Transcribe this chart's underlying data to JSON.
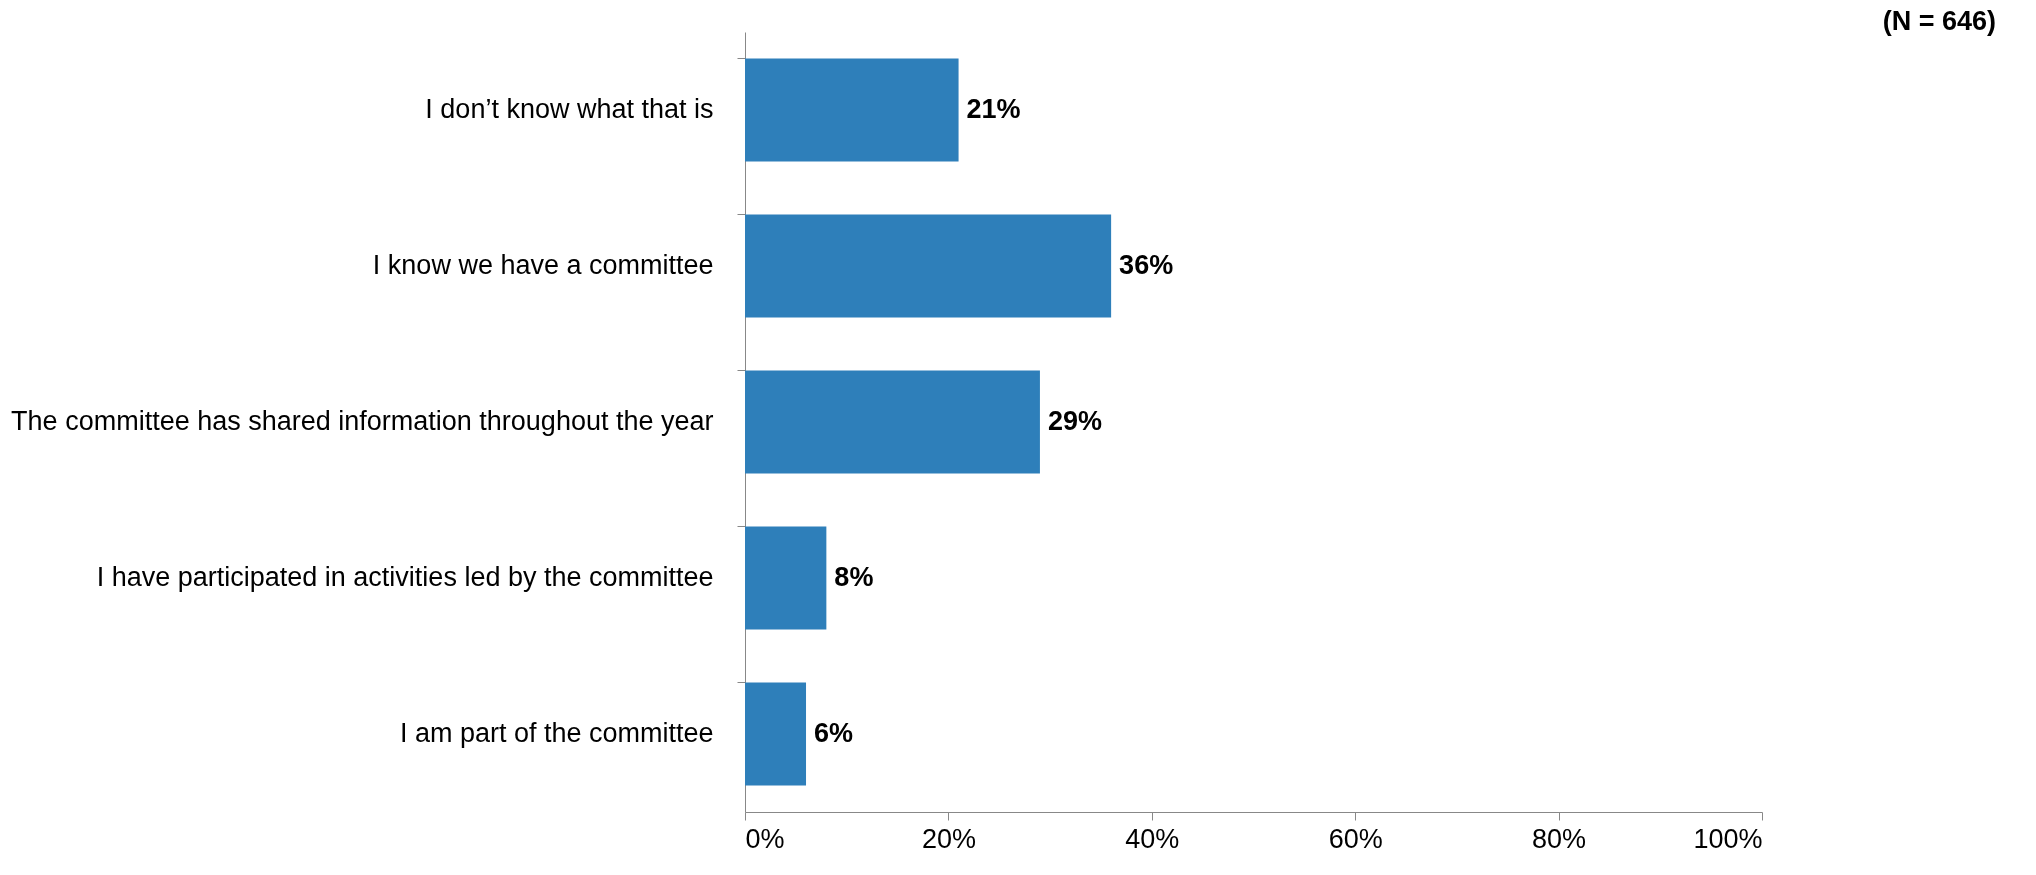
{
  "chart_data": {
    "type": "bar",
    "orientation": "horizontal",
    "categories": [
      "I don’t know what that is",
      "I know we have a committee",
      "The committee has shared information throughout the year",
      "I have participated in activities led by the committee",
      "I am part of the committee"
    ],
    "values": [
      21,
      36,
      29,
      8,
      6
    ],
    "value_labels": [
      "21%",
      "36%",
      "29%",
      "8%",
      "6%"
    ],
    "color": "#2e7fba",
    "xlim": [
      0,
      100
    ],
    "xticks": [
      {
        "value": 0,
        "label": "0%"
      },
      {
        "value": 20,
        "label": "20%"
      },
      {
        "value": 40,
        "label": "40%"
      },
      {
        "value": 60,
        "label": "60%"
      },
      {
        "value": 80,
        "label": "80%"
      },
      {
        "value": 100,
        "label": "100%"
      }
    ],
    "annotations": [
      "(N = 646)"
    ]
  }
}
